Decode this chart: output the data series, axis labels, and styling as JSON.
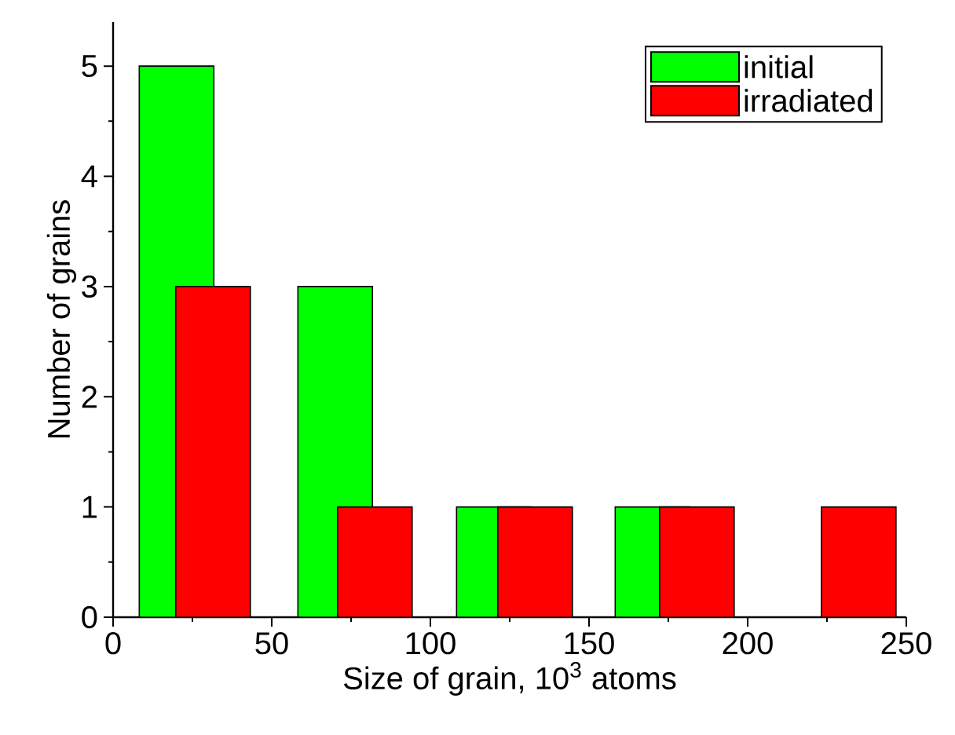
{
  "chart_data": {
    "type": "bar",
    "xlabel": "Size of grain, 10$^{3}$ atoms",
    "ylabel": "Number of grains",
    "series": [
      {
        "name": "initial",
        "color": "#00ff00",
        "x": [
          20,
          70,
          120,
          170
        ],
        "values": [
          5,
          3,
          1,
          1
        ]
      },
      {
        "name": "irradiated",
        "color": "#ff0000",
        "x": [
          31.5,
          82.5,
          133,
          184,
          235
        ],
        "values": [
          3,
          1,
          1,
          1,
          1
        ]
      }
    ],
    "xlim": [
      0,
      250
    ],
    "xticks": [
      0,
      50,
      100,
      150,
      200,
      250
    ],
    "ylim": [
      0,
      5.4
    ],
    "yticks": [
      0,
      1,
      2,
      3,
      4,
      5
    ],
    "legend": "top right",
    "grid": false
  }
}
